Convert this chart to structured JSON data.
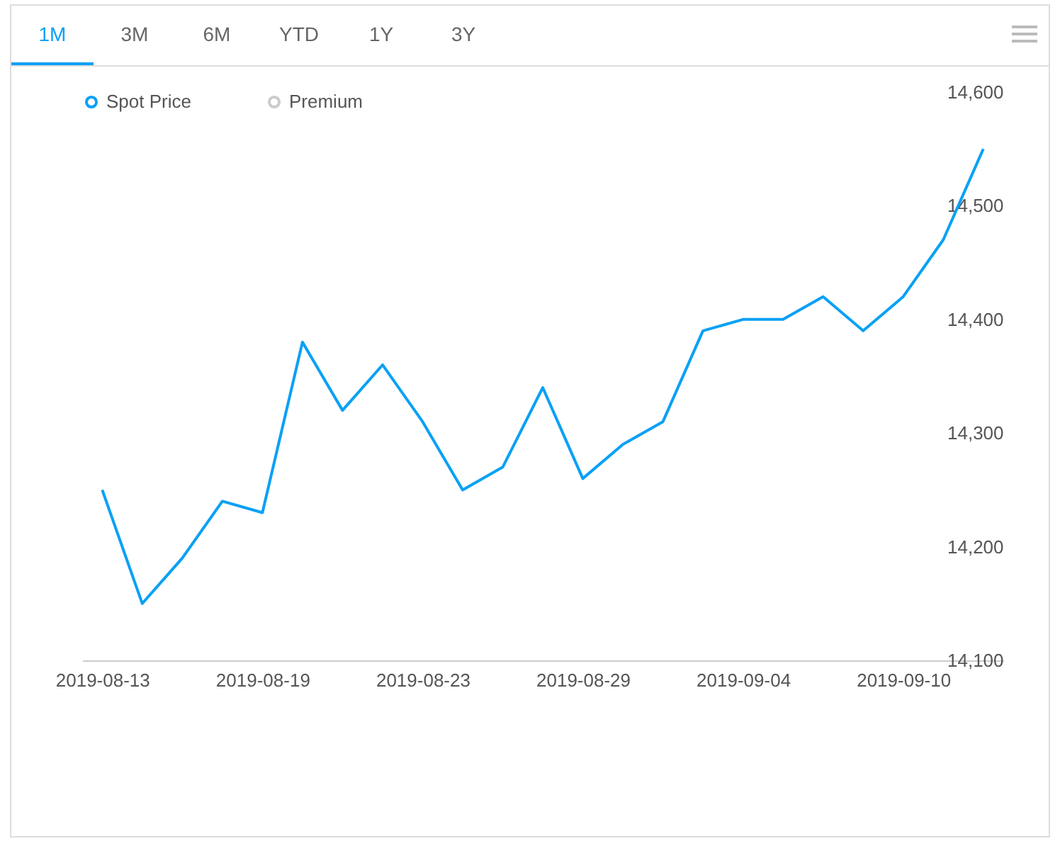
{
  "chart_data": {
    "type": "line",
    "annotations": [
      "1M",
      "3M",
      "6M",
      "YTD",
      "1Y",
      "3Y"
    ],
    "categories": [
      "2019-08-13",
      null,
      null,
      null,
      "2019-08-19",
      null,
      null,
      null,
      "2019-08-23",
      null,
      null,
      null,
      "2019-08-29",
      null,
      null,
      null,
      "2019-09-04",
      null,
      null,
      null,
      "2019-09-10",
      null,
      null
    ],
    "series": [
      {
        "name": "Spot Price",
        "color": "#0aa1f5",
        "values": [
          14250,
          14150,
          14190,
          14240,
          14230,
          14380,
          14320,
          14360,
          14310,
          14250,
          14270,
          14340,
          14260,
          14290,
          14310,
          14390,
          14400,
          14400,
          14420,
          14390,
          14420,
          14470,
          14550
        ]
      },
      {
        "name": "Premium",
        "color": "#cccccc",
        "values": [
          null,
          null,
          null,
          null,
          null,
          null,
          null,
          null,
          null,
          null,
          null,
          null,
          null,
          null,
          null,
          null,
          null,
          null,
          null,
          null,
          null,
          null,
          null
        ]
      }
    ],
    "ylim": [
      14100,
      14600
    ],
    "yticks": [
      {
        "value": 14100,
        "label": "14,100"
      },
      {
        "value": 14200,
        "label": "14,200"
      },
      {
        "value": 14300,
        "label": "14,300"
      },
      {
        "value": 14400,
        "label": "14,400"
      },
      {
        "value": 14500,
        "label": "14,500"
      },
      {
        "value": 14600,
        "label": "14,600"
      }
    ],
    "grid": false,
    "legend": "top left",
    "marker": "none",
    "line_style": "solid"
  }
}
